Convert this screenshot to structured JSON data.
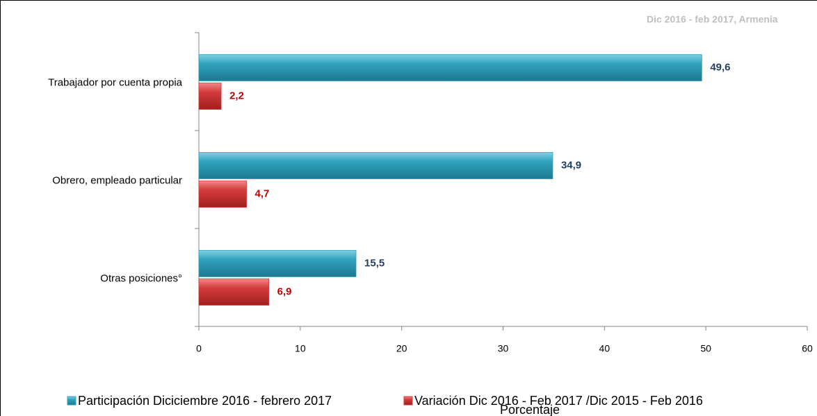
{
  "chart_data": {
    "type": "bar",
    "orientation": "horizontal",
    "subtitle": "Dic 2016 - feb 2017, Armenia",
    "x_label": "Porcentaje",
    "categories": [
      "Trabajador por cuenta propia",
      "Obrero, empleado particular",
      "Otras posiciones°"
    ],
    "series": [
      {
        "name": "Participación Diciciembre 2016 - febrero 2017",
        "color": "#31a2bd",
        "values": [
          49.6,
          34.9,
          15.5
        ],
        "value_labels": [
          "49,6",
          "34,9",
          "15,5"
        ]
      },
      {
        "name": "Variación Dic 2016 - Feb 2017 /Dic 2015 - Feb 2016",
        "color": "#d33b3b",
        "values": [
          2.2,
          4.7,
          6.9
        ],
        "value_labels": [
          "2,2",
          "4,7",
          "6,9"
        ]
      }
    ],
    "xlim": [
      0,
      60
    ],
    "xticks": [
      0,
      10,
      20,
      30,
      40,
      50,
      60
    ],
    "grid": false
  }
}
